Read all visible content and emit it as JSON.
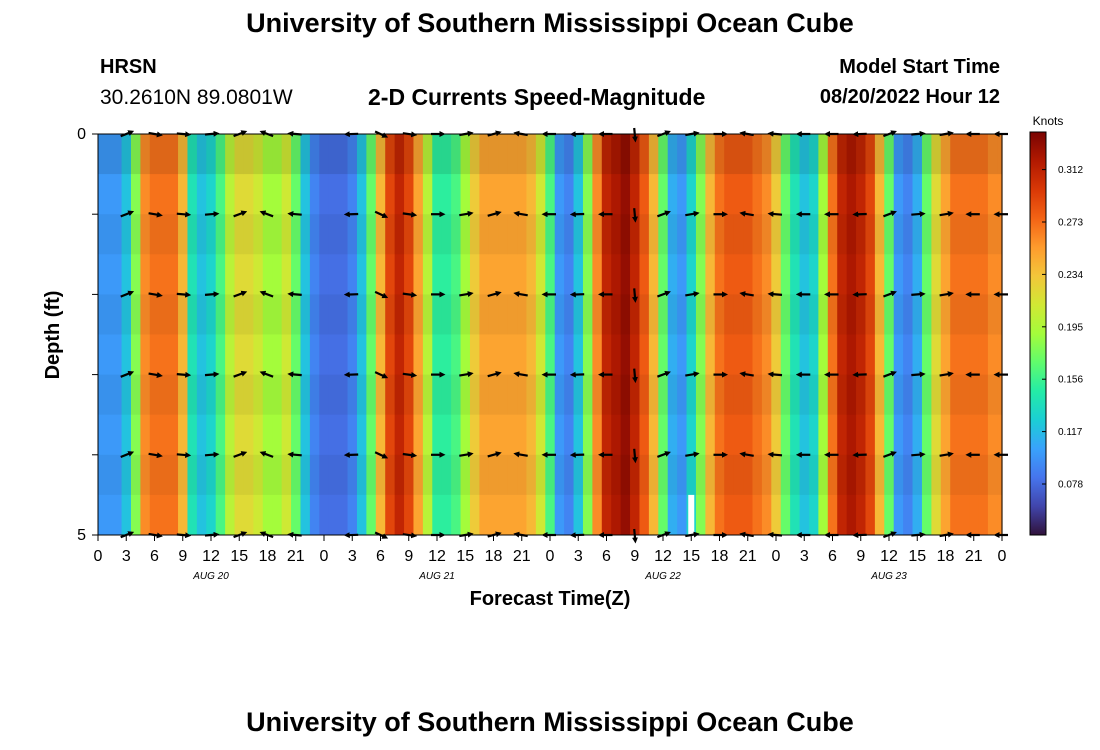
{
  "header": {
    "title": "University of Southern Mississippi Ocean Cube",
    "station_code": "HRSN",
    "station_location": "30.2610N  89.0801W",
    "model_start_label": "Model Start Time",
    "model_start_value": "08/20/2022 Hour 12",
    "footer_title": "University of Southern Mississippi Ocean Cube"
  },
  "chart_data": {
    "type": "heatmap",
    "title": "2-D Currents Speed-Magnitude",
    "xlabel": "Forecast Time(Z)",
    "ylabel": "Depth (ft)",
    "x_unit": "hours from 00Z Aug 20",
    "xlim": [
      0,
      96
    ],
    "ylim": [
      0,
      5
    ],
    "y_tick_labels": [
      {
        "value": 0,
        "label": "0"
      },
      {
        "value": 1,
        "label": ""
      },
      {
        "value": 2,
        "label": ""
      },
      {
        "value": 3,
        "label": ""
      },
      {
        "value": 4,
        "label": ""
      },
      {
        "value": 5,
        "label": "5"
      }
    ],
    "x_tick_labels": [
      "0",
      "3",
      "6",
      "9",
      "12",
      "15",
      "18",
      "21",
      "0",
      "3",
      "6",
      "9",
      "12",
      "15",
      "18",
      "21",
      "0",
      "3",
      "6",
      "9",
      "12",
      "15",
      "18",
      "21",
      "0",
      "3",
      "6",
      "9",
      "12",
      "15",
      "18",
      "21",
      "0"
    ],
    "day_labels": [
      {
        "label": "AUG 20",
        "hour": 12
      },
      {
        "label": "AUG 21",
        "hour": 36
      },
      {
        "label": "AUG 22",
        "hour": 60
      },
      {
        "label": "AUG 23",
        "hour": 84
      }
    ],
    "colorbar": {
      "title": "Knots",
      "min": 0.04,
      "max": 0.34,
      "ticks": [
        "0.078",
        "0.117",
        "0.156",
        "0.195",
        "0.234",
        "0.273",
        "0.312"
      ],
      "colors": [
        "#30123b",
        "#4145ab",
        "#4675ed",
        "#39a2fc",
        "#1bcfd4",
        "#24eca6",
        "#61fc6c",
        "#a4fc3b",
        "#d1e834",
        "#f3c63a",
        "#fe9b2d",
        "#f36315",
        "#d93806",
        "#b11901",
        "#7a0402"
      ]
    },
    "speed_by_hour": [
      0.1,
      0.1,
      0.1,
      0.12,
      0.18,
      0.26,
      0.27,
      0.27,
      0.27,
      0.24,
      0.14,
      0.12,
      0.13,
      0.16,
      0.2,
      0.22,
      0.22,
      0.21,
      0.19,
      0.19,
      0.21,
      0.17,
      0.12,
      0.09,
      0.08,
      0.08,
      0.08,
      0.09,
      0.12,
      0.17,
      0.24,
      0.29,
      0.31,
      0.29,
      0.25,
      0.2,
      0.15,
      0.15,
      0.16,
      0.19,
      0.23,
      0.25,
      0.25,
      0.25,
      0.25,
      0.25,
      0.24,
      0.21,
      0.16,
      0.1,
      0.09,
      0.12,
      0.18,
      0.26,
      0.31,
      0.32,
      0.33,
      0.31,
      0.28,
      0.24,
      0.17,
      0.11,
      0.1,
      0.13,
      0.18,
      0.24,
      0.27,
      0.28,
      0.28,
      0.28,
      0.27,
      0.26,
      0.23,
      0.17,
      0.14,
      0.12,
      0.13,
      0.19,
      0.27,
      0.31,
      0.32,
      0.31,
      0.29,
      0.24,
      0.17,
      0.1,
      0.09,
      0.11,
      0.17,
      0.22,
      0.25,
      0.27,
      0.27,
      0.27,
      0.27,
      0.26,
      0.26
    ],
    "vector_depths_ft": [
      0,
      1,
      2,
      3,
      4,
      5
    ],
    "vector_hours": [
      3,
      6,
      9,
      12,
      15,
      18,
      21,
      27,
      30,
      33,
      36,
      39,
      42,
      45,
      48,
      51,
      54,
      57,
      60,
      63,
      66,
      69,
      72,
      75,
      78,
      81,
      84,
      87,
      90,
      93,
      96
    ],
    "vector_directions_deg": [
      -22,
      10,
      5,
      -5,
      -20,
      -160,
      -175,
      178,
      25,
      8,
      0,
      -10,
      -15,
      -170,
      180,
      178,
      180,
      85,
      -20,
      -10,
      0,
      -170,
      -175,
      180,
      180,
      178,
      -20,
      -5,
      -10,
      180,
      180
    ],
    "marker": {
      "hour": 63,
      "depth_from": 4.5,
      "depth_to": 5,
      "color": "#ffffff"
    }
  }
}
